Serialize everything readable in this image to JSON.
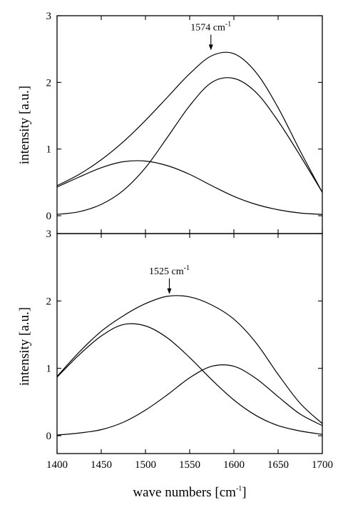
{
  "chart_data": [
    {
      "type": "line",
      "panel": "top",
      "ylabel": "intensity [a.u.]",
      "xlim": [
        1400,
        1700
      ],
      "ylim": [
        0,
        3
      ],
      "yticks": [
        "0",
        "1",
        "2",
        "3"
      ],
      "annotation": {
        "text": "1574 cm",
        "superscript": "-1",
        "x": 1574,
        "y": 2.46
      },
      "series": [
        {
          "x": [
            1400,
            1425,
            1450,
            1475,
            1500,
            1525,
            1550,
            1575,
            1600,
            1625,
            1650,
            1675,
            1700
          ],
          "y": [
            0.45,
            0.62,
            0.84,
            1.11,
            1.43,
            1.78,
            2.13,
            2.4,
            2.43,
            2.15,
            1.62,
            0.97,
            0.35
          ]
        },
        {
          "x": [
            1400,
            1425,
            1450,
            1475,
            1500,
            1525,
            1550,
            1575,
            1600,
            1625,
            1650,
            1675,
            1700
          ],
          "y": [
            0.02,
            0.06,
            0.17,
            0.38,
            0.72,
            1.18,
            1.65,
            2.0,
            2.06,
            1.85,
            1.42,
            0.9,
            0.35
          ]
        },
        {
          "x": [
            1400,
            1425,
            1450,
            1475,
            1500,
            1525,
            1550,
            1575,
            1600,
            1625,
            1650,
            1675,
            1700
          ],
          "y": [
            0.43,
            0.58,
            0.72,
            0.81,
            0.82,
            0.75,
            0.62,
            0.45,
            0.29,
            0.17,
            0.09,
            0.04,
            0.02
          ]
        }
      ]
    },
    {
      "type": "line",
      "panel": "bottom",
      "xlabel": "wave numbers [cm",
      "xlabel_sup": "-1",
      "xlabel_close": "]",
      "ylabel": "intensity [a.u.]",
      "xlim": [
        1400,
        1700
      ],
      "ylim": [
        0,
        3
      ],
      "xticks": [
        "1400",
        "1450",
        "1500",
        "1550",
        "1600",
        "1650",
        "1700"
      ],
      "yticks": [
        "0",
        "1",
        "2",
        "3"
      ],
      "annotation": {
        "text": "1525 cm",
        "superscript": "-1",
        "x": 1527,
        "y": 2.08
      },
      "series": [
        {
          "x": [
            1400,
            1425,
            1450,
            1475,
            1500,
            1525,
            1550,
            1575,
            1600,
            1625,
            1650,
            1675,
            1700
          ],
          "y": [
            0.88,
            1.24,
            1.55,
            1.78,
            1.96,
            2.07,
            2.06,
            1.94,
            1.73,
            1.38,
            0.91,
            0.48,
            0.18
          ]
        },
        {
          "x": [
            1400,
            1425,
            1450,
            1475,
            1500,
            1525,
            1550,
            1575,
            1600,
            1625,
            1650,
            1675,
            1700
          ],
          "y": [
            0.87,
            1.2,
            1.48,
            1.65,
            1.63,
            1.45,
            1.16,
            0.83,
            0.53,
            0.3,
            0.15,
            0.07,
            0.02
          ]
        },
        {
          "x": [
            1400,
            1425,
            1450,
            1475,
            1500,
            1525,
            1550,
            1575,
            1600,
            1625,
            1650,
            1675,
            1700
          ],
          "y": [
            0.01,
            0.04,
            0.09,
            0.2,
            0.38,
            0.61,
            0.86,
            1.03,
            1.03,
            0.85,
            0.58,
            0.32,
            0.15
          ]
        }
      ]
    }
  ]
}
